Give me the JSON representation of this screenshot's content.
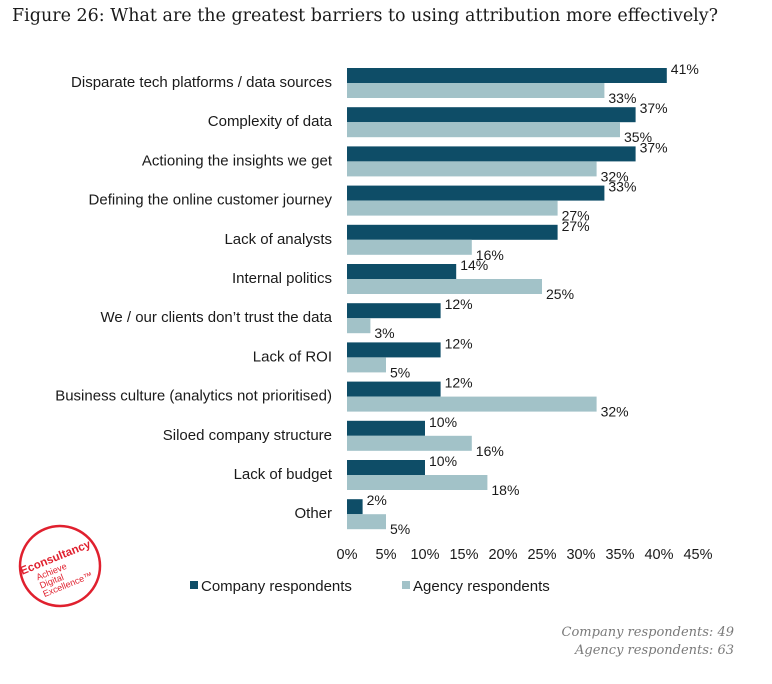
{
  "title": "Figure 26: What are the greatest barriers to using attribution more effectively?",
  "chart_data": {
    "type": "bar",
    "orientation": "horizontal",
    "categories": [
      "Disparate tech platforms / data sources",
      "Complexity of data",
      "Actioning the insights we get",
      "Defining the online customer journey",
      "Lack of analysts",
      "Internal politics",
      "We / our clients don’t trust the data",
      "Lack of ROI",
      "Business culture (analytics not prioritised)",
      "Siloed company structure",
      "Lack of budget",
      "Other"
    ],
    "series": [
      {
        "name": "Company respondents",
        "values": [
          41,
          37,
          37,
          33,
          27,
          14,
          12,
          12,
          12,
          10,
          10,
          2
        ],
        "color": "#0e4d67"
      },
      {
        "name": "Agency respondents",
        "values": [
          33,
          35,
          32,
          27,
          16,
          25,
          3,
          5,
          32,
          16,
          18,
          5
        ],
        "color": "#a2c2c8"
      }
    ],
    "xlim": [
      0,
      45
    ],
    "xticks": [
      0,
      5,
      10,
      15,
      20,
      25,
      30,
      35,
      40,
      45
    ],
    "tick_suffix": "%",
    "value_suffix": "%",
    "legend_position": "bottom",
    "grid": false
  },
  "logo": {
    "brand": "Econsultancy",
    "tagline_lines": [
      "Achieve",
      "Digital",
      "Excellence™"
    ],
    "color": "#e0202e"
  },
  "footnotes": [
    "Company respondents: 49",
    "Agency respondents: 63"
  ]
}
